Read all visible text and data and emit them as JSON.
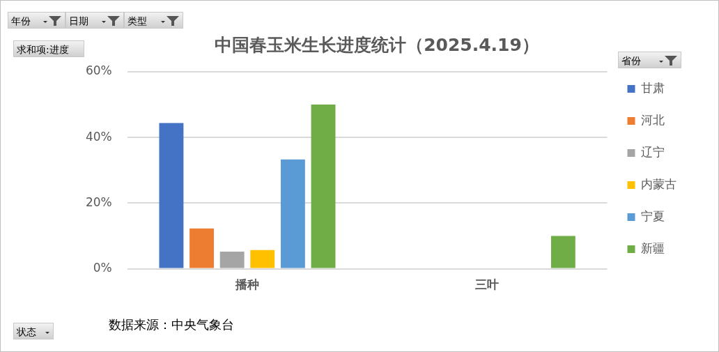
{
  "chart_data": {
    "type": "bar",
    "title": "中国春玉米生长进度统计（2025.4.19）",
    "legend_title": "省份",
    "categories": [
      "播种",
      "三叶"
    ],
    "series": [
      {
        "name": "甘肃",
        "color": "#4472c4",
        "values": [
          44.4,
          null
        ]
      },
      {
        "name": "河北",
        "color": "#ed7d31",
        "values": [
          12.3,
          null
        ]
      },
      {
        "name": "辽宁",
        "color": "#a5a5a5",
        "values": [
          5.2,
          null
        ]
      },
      {
        "name": "内蒙古",
        "color": "#ffc000",
        "values": [
          5.7,
          null
        ]
      },
      {
        "name": "宁夏",
        "color": "#5b9bd5",
        "values": [
          33.3,
          null
        ]
      },
      {
        "name": "新疆",
        "color": "#70ad47",
        "values": [
          50,
          10
        ]
      }
    ],
    "ylim": [
      0,
      60
    ],
    "yticks": [
      {
        "value": 0,
        "label": "0%"
      },
      {
        "value": 20,
        "label": "20%"
      },
      {
        "value": 40,
        "label": "40%"
      },
      {
        "value": 60,
        "label": "60%"
      }
    ],
    "grid": "y",
    "legend": "right",
    "annotations": [
      "年份",
      "日期",
      "类型",
      "求和项:进度",
      "状态",
      "数据来源：中央气象台"
    ]
  }
}
